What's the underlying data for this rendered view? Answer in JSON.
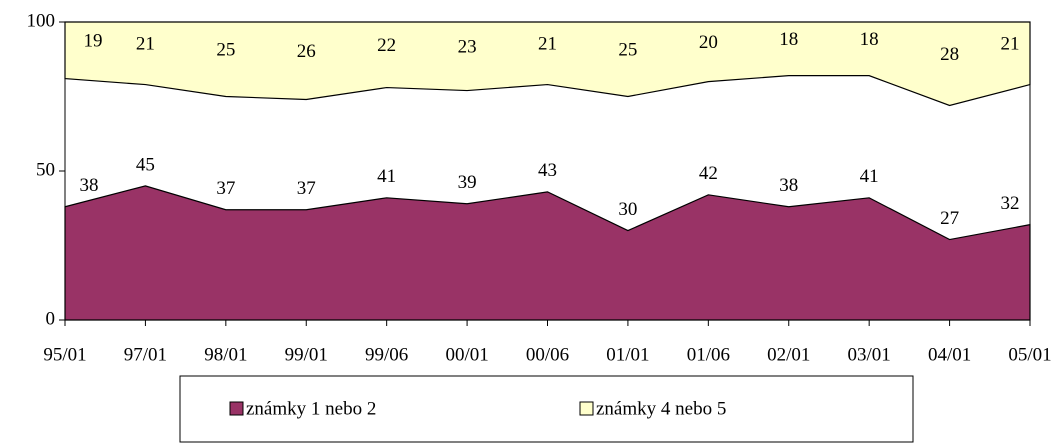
{
  "chart_data": {
    "type": "area",
    "categories": [
      "95/01",
      "97/01",
      "98/01",
      "99/01",
      "99/06",
      "00/01",
      "00/06",
      "01/01",
      "01/06",
      "02/01",
      "03/01",
      "04/01",
      "05/01"
    ],
    "series": [
      {
        "name": "známky 1 nebo 2",
        "color": "#993366",
        "values": [
          38,
          45,
          37,
          37,
          41,
          39,
          43,
          30,
          42,
          38,
          41,
          27,
          32
        ]
      },
      {
        "name": "známky 4 nebo 5",
        "color": "#ffffcc",
        "values": [
          19,
          21,
          25,
          26,
          22,
          23,
          21,
          25,
          20,
          18,
          18,
          28,
          21
        ]
      }
    ],
    "ylim": [
      0,
      100
    ],
    "yticks": [
      0,
      50,
      100
    ],
    "legend": "bottom"
  }
}
